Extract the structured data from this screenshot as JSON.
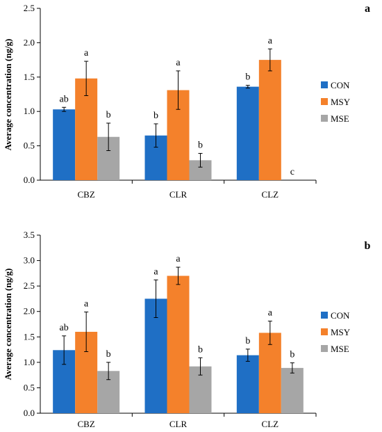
{
  "chart_data": [
    {
      "panel": "a",
      "type": "bar",
      "categories": [
        "CBZ",
        "CLR",
        "CLZ"
      ],
      "ylabel": "Average concentration (ng/g)",
      "ylim": [
        0,
        2.5
      ],
      "yticks": [
        "0.0",
        "0.5",
        "1.0",
        "1.5",
        "2.0",
        "2.5"
      ],
      "legend_position": "right",
      "series": [
        {
          "name": "CON",
          "color": "#1f6fc5",
          "values": [
            1.03,
            0.65,
            1.36
          ],
          "errors": [
            0.03,
            0.17,
            0.02
          ],
          "letters": [
            "ab",
            "b",
            "b"
          ]
        },
        {
          "name": "MSY",
          "color": "#f4812b",
          "values": [
            1.48,
            1.31,
            1.75
          ],
          "errors": [
            0.25,
            0.28,
            0.16
          ],
          "letters": [
            "a",
            "a",
            "a"
          ]
        },
        {
          "name": "MSE",
          "color": "#a6a6a6",
          "values": [
            0.63,
            0.29,
            0.0
          ],
          "errors": [
            0.2,
            0.1,
            0.0
          ],
          "letters": [
            "b",
            "b",
            "c"
          ]
        }
      ]
    },
    {
      "panel": "b",
      "type": "bar",
      "categories": [
        "CBZ",
        "CLR",
        "CLZ"
      ],
      "ylabel": "Average concentration (ng/g)",
      "ylim": [
        0,
        3.5
      ],
      "yticks": [
        "0.0",
        "0.5",
        "1.0",
        "1.5",
        "2.0",
        "2.5",
        "3.0",
        "3.5"
      ],
      "legend_position": "right",
      "series": [
        {
          "name": "CON",
          "color": "#1f6fc5",
          "values": [
            1.24,
            2.25,
            1.14
          ],
          "errors": [
            0.28,
            0.37,
            0.12
          ],
          "letters": [
            "ab",
            "a",
            "b"
          ]
        },
        {
          "name": "MSY",
          "color": "#f4812b",
          "values": [
            1.6,
            2.7,
            1.58
          ],
          "errors": [
            0.39,
            0.17,
            0.23
          ],
          "letters": [
            "a",
            "a",
            "a"
          ]
        },
        {
          "name": "MSE",
          "color": "#a6a6a6",
          "values": [
            0.83,
            0.92,
            0.89
          ],
          "errors": [
            0.17,
            0.17,
            0.1
          ],
          "letters": [
            "b",
            "b",
            "b"
          ]
        }
      ]
    }
  ]
}
